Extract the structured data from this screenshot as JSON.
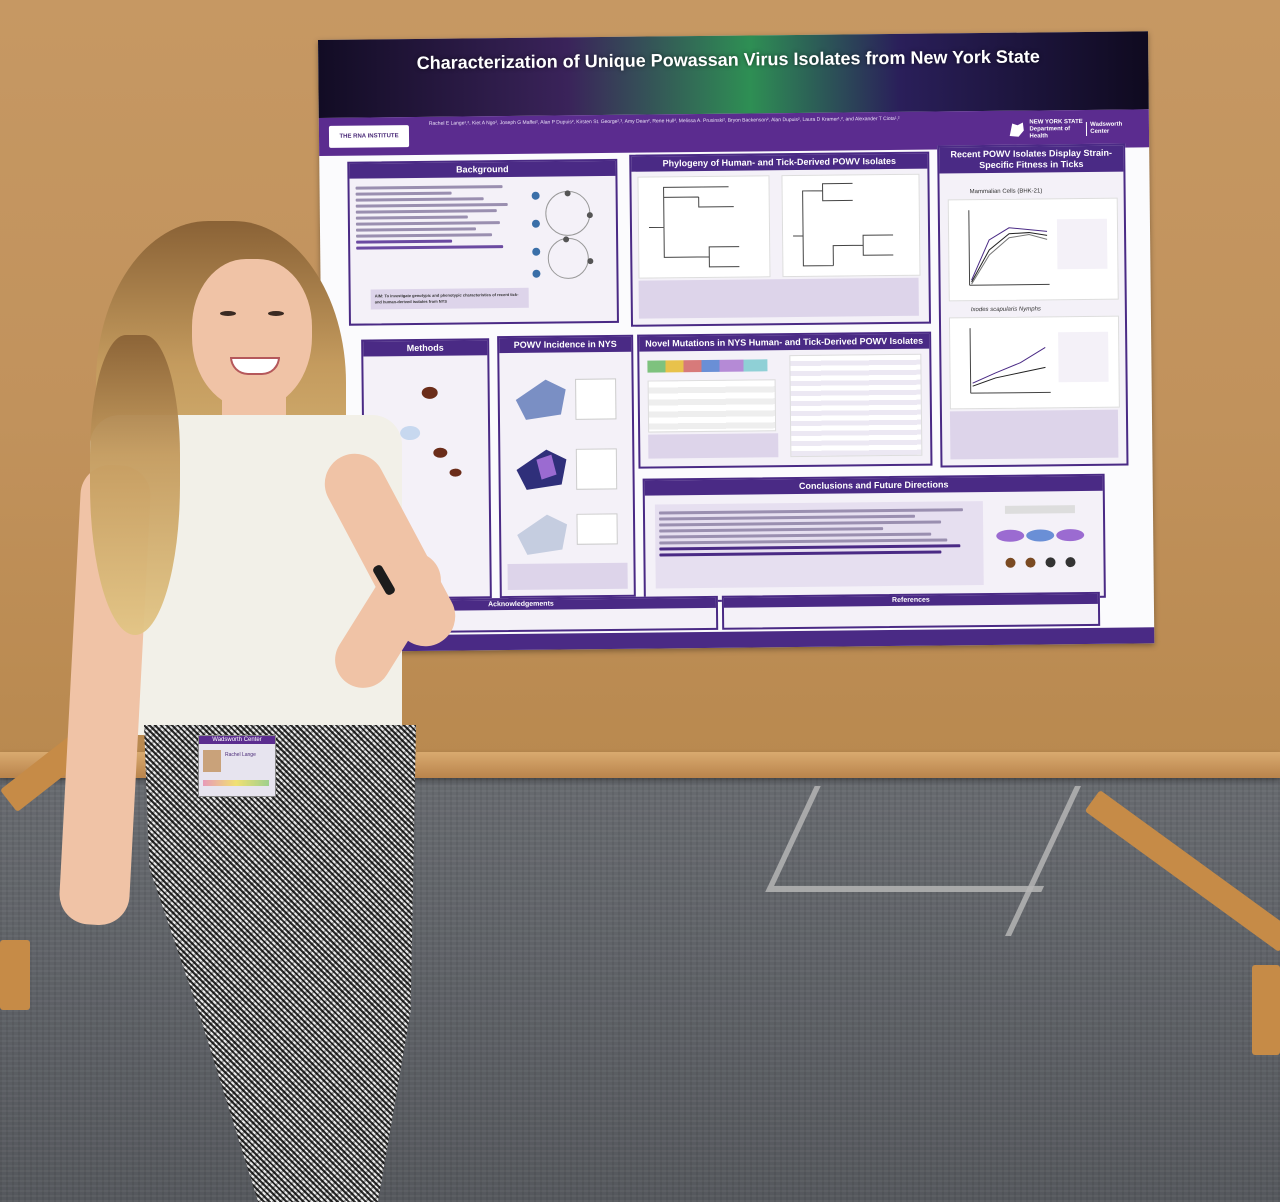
{
  "poster": {
    "title": "Characterization of Unique Powassan Virus Isolates from New York State",
    "authors": "Rachel E Lange¹,², Kiet A Ngo², Joseph G Maffei², Alan P Dupuis², Kirsten St. George²,³, Amy Dean², Rene Hull², Melissa A. Prusinski², Bryon Backenson², Alan Dupuis², Laura D Kramer¹,², and Alexander T Ciota¹,²",
    "institute_logo": "THE RNA INSTITUTE",
    "dept_logo_1": "NEW YORK STATE",
    "dept_logo_2": "Department of Health",
    "dept_logo_3": "Wadsworth Center",
    "sections": {
      "background": "Background",
      "methods": "Methods",
      "incidence": "POWV Incidence in NYS",
      "phylogeny": "Phylogeny of Human- and Tick-Derived POWV Isolates",
      "mutations": "Novel Mutations in NYS Human- and Tick-Derived POWV Isolates",
      "fitness": "Recent POWV Isolates Display Strain-Specific Fitness in Ticks",
      "conclusions": "Conclusions and Future Directions",
      "acknowledgements": "Acknowledgements",
      "references": "References"
    },
    "fitness_plot_a": "Mammalian Cells (BHK-21)",
    "fitness_plot_b": "Ixodes scapularis Nymphs",
    "aim": "AIM: To investigate genotypic and phenotypic characteristics of recent tick- and human-derived isolates from NYS"
  },
  "badge": {
    "org": "Wadsworth Center",
    "name": "Rachel Lange"
  },
  "colors": {
    "poster_purple": "#4a2a85",
    "corkboard": "#c69863",
    "carpet": "#5f6267"
  }
}
